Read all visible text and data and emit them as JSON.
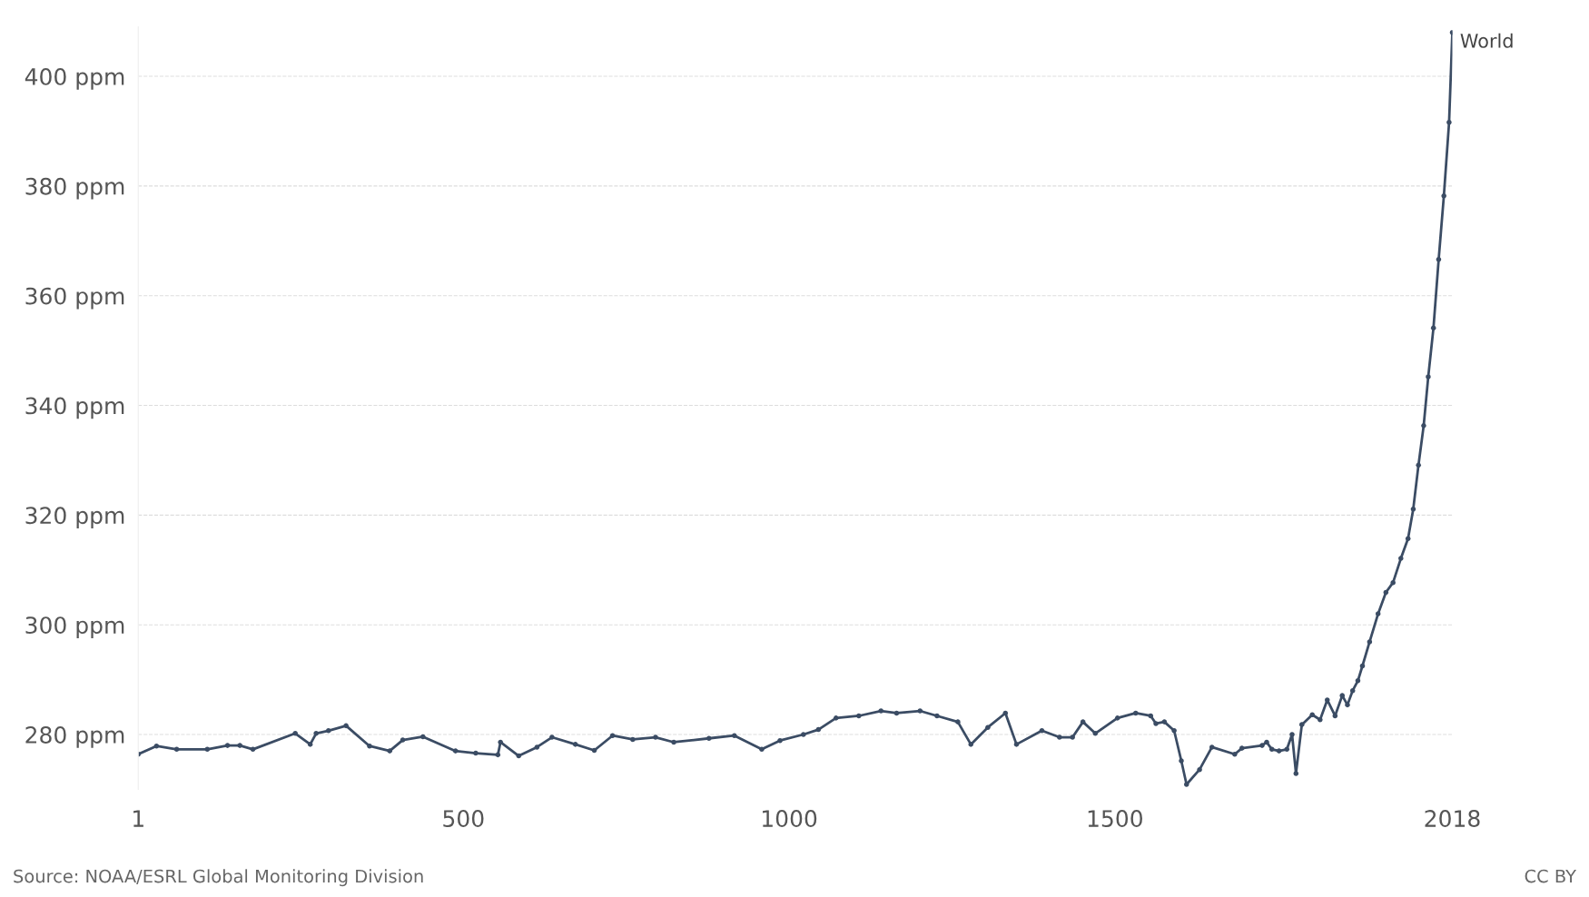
{
  "chart_data": {
    "type": "line",
    "x": [
      1,
      29,
      60,
      107,
      138,
      157,
      177,
      242,
      265,
      274,
      293,
      320,
      356,
      387,
      407,
      438,
      488,
      519,
      553,
      557,
      585,
      613,
      636,
      672,
      701,
      729,
      760,
      795,
      823,
      877,
      916,
      958,
      986,
      1022,
      1045,
      1072,
      1107,
      1141,
      1165,
      1201,
      1227,
      1259,
      1279,
      1305,
      1332,
      1349,
      1388,
      1415,
      1435,
      1451,
      1470,
      1504,
      1532,
      1555,
      1563,
      1576,
      1591,
      1602,
      1610,
      1630,
      1649,
      1684,
      1695,
      1726,
      1733,
      1741,
      1752,
      1764,
      1772,
      1778,
      1787,
      1803,
      1815,
      1826,
      1838,
      1849,
      1857,
      1865,
      1873,
      1880,
      1891,
      1904,
      1916,
      1927,
      1939,
      1950,
      1958,
      1966,
      1974,
      1981,
      1989,
      1997,
      2005,
      2013,
      2018
    ],
    "series": [
      {
        "name": "World",
        "color": "#3b4c64",
        "values": [
          276.4,
          277.9,
          277.3,
          277.3,
          278,
          278,
          277.3,
          280.2,
          278.2,
          280.2,
          280.7,
          281.6,
          277.9,
          277,
          279,
          279.6,
          277,
          276.6,
          276.3,
          278.6,
          276.1,
          277.7,
          279.5,
          278.2,
          277.1,
          279.8,
          279.1,
          279.5,
          278.6,
          279.3,
          279.8,
          277.3,
          278.9,
          280,
          280.9,
          283,
          283.4,
          284.3,
          283.9,
          284.3,
          283.4,
          282.3,
          278.2,
          281.3,
          283.9,
          278.2,
          280.7,
          279.5,
          279.5,
          282.3,
          280.2,
          283,
          283.9,
          283.4,
          282,
          282.3,
          280.7,
          275.2,
          270.9,
          273.6,
          277.7,
          276.4,
          277.5,
          278,
          278.6,
          277.3,
          277,
          277.3,
          280,
          272.9,
          281.8,
          283.6,
          282.7,
          286.3,
          283.4,
          287.1,
          285.4,
          288,
          289.8,
          292.5,
          296.9,
          302,
          305.9,
          307.7,
          312.1,
          315.7,
          321.1,
          329.1,
          336.3,
          345.2,
          354.1,
          366.6,
          378.2,
          391.6,
          408
        ]
      }
    ],
    "xlim": [
      1,
      2018
    ],
    "xticks": [
      1,
      500,
      1000,
      1500,
      2018
    ],
    "ylim": [
      270,
      409
    ],
    "yticks": [
      {
        "value": 280,
        "label": "280 ppm"
      },
      {
        "value": 300,
        "label": "300 ppm"
      },
      {
        "value": 320,
        "label": "320 ppm"
      },
      {
        "value": 340,
        "label": "340 ppm"
      },
      {
        "value": 360,
        "label": "360 ppm"
      },
      {
        "value": 380,
        "label": "380 ppm"
      },
      {
        "value": 400,
        "label": "400 ppm"
      }
    ],
    "grid": "y",
    "marker": "circle",
    "line_style": "solid",
    "legend": false,
    "annotations": [
      "Source: NOAA/ESRL Global Monitoring Division",
      "CC BY"
    ]
  }
}
